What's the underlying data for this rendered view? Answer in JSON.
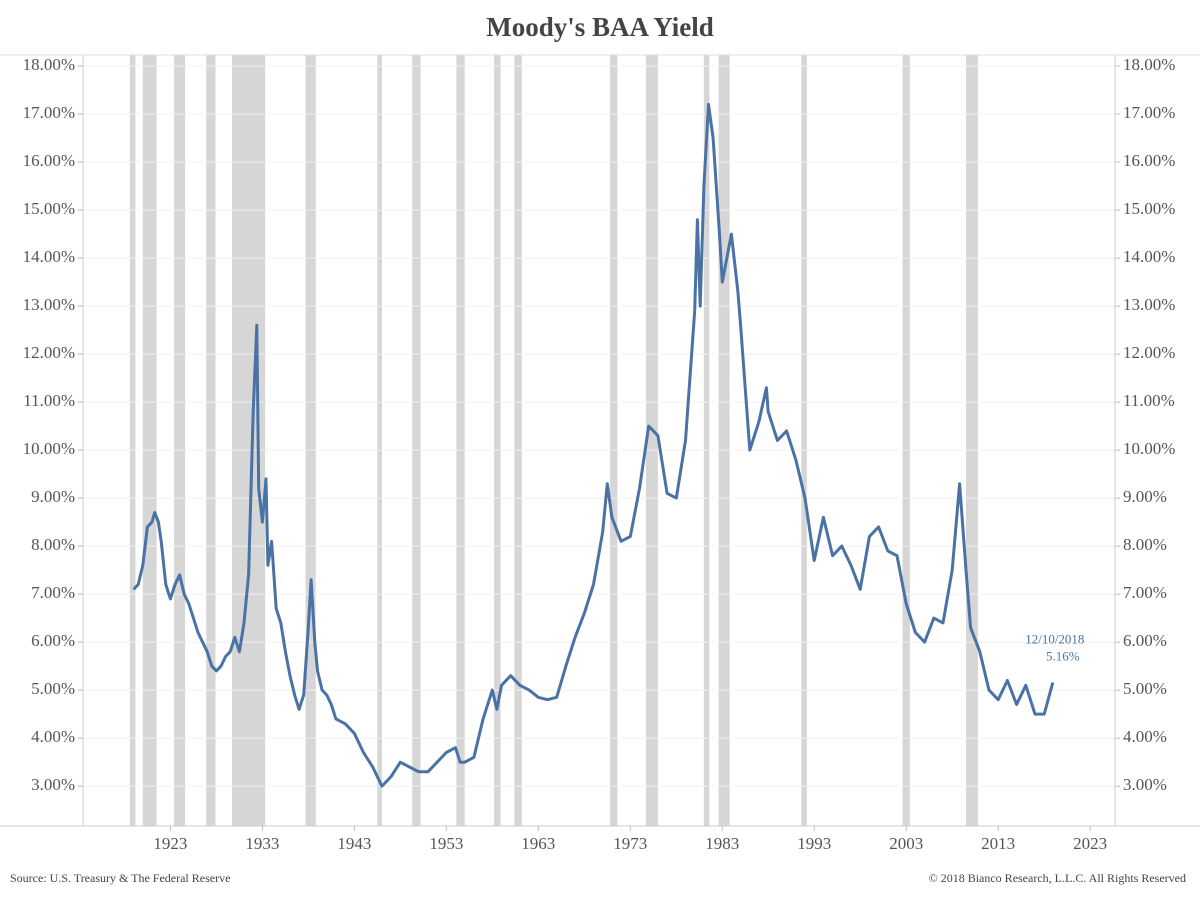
{
  "chart_data": {
    "type": "line",
    "title": "Moody's BAA Yield",
    "source": "Source: U.S. Treasury & The Federal Reserve",
    "copyright": "© 2018 Bianco Research, L.L.C. All Rights Reserved",
    "xlim": [
      1913.5,
      2025.7
    ],
    "xticks": [
      1923,
      1933,
      1943,
      1953,
      1963,
      1973,
      1983,
      1993,
      2003,
      2013,
      2023
    ],
    "ylim": [
      2.17,
      18.23
    ],
    "yticks": [
      {
        "value": 3,
        "label": "3.00%"
      },
      {
        "value": 4,
        "label": "4.00%"
      },
      {
        "value": 5,
        "label": "5.00%"
      },
      {
        "value": 6,
        "label": "6.00%"
      },
      {
        "value": 7,
        "label": "7.00%"
      },
      {
        "value": 8,
        "label": "8.00%"
      },
      {
        "value": 9,
        "label": "9.00%"
      },
      {
        "value": 10,
        "label": "10.00%"
      },
      {
        "value": 11,
        "label": "11.00%"
      },
      {
        "value": 12,
        "label": "12.00%"
      },
      {
        "value": 13,
        "label": "13.00%"
      },
      {
        "value": 14,
        "label": "14.00%"
      },
      {
        "value": 15,
        "label": "15.00%"
      },
      {
        "value": 16,
        "label": "16.00%"
      },
      {
        "value": 17,
        "label": "17.00%"
      },
      {
        "value": 18,
        "label": "18.00%"
      }
    ],
    "grid": true,
    "recession_color": "#d6d6d6",
    "recessions": [
      [
        1918.6,
        1919.2
      ],
      [
        1920.0,
        1921.5
      ],
      [
        1923.4,
        1924.6
      ],
      [
        1926.9,
        1927.9
      ],
      [
        1929.7,
        1933.3
      ],
      [
        1937.7,
        1938.8
      ],
      [
        1945.5,
        1946.0
      ],
      [
        1949.3,
        1950.2
      ],
      [
        1954.1,
        1955.0
      ],
      [
        1958.2,
        1958.9
      ],
      [
        1960.4,
        1961.2
      ],
      [
        1970.8,
        1971.6
      ],
      [
        1974.7,
        1976.0
      ],
      [
        1981.0,
        1981.6
      ],
      [
        1982.6,
        1983.8
      ],
      [
        1991.6,
        1992.2
      ],
      [
        2002.6,
        2003.4
      ],
      [
        2009.5,
        2010.8
      ]
    ],
    "x": [
      1919.0,
      1919.5,
      1920.0,
      1920.5,
      1921.0,
      1921.3,
      1921.7,
      1922.0,
      1922.5,
      1923.0,
      1923.5,
      1924.0,
      1924.5,
      1925.0,
      1925.5,
      1926.0,
      1926.5,
      1927.0,
      1927.5,
      1928.0,
      1928.5,
      1929.0,
      1929.5,
      1930.0,
      1930.5,
      1931.0,
      1931.5,
      1932.0,
      1932.4,
      1932.6,
      1933.0,
      1933.4,
      1933.6,
      1934.0,
      1934.5,
      1935.0,
      1935.5,
      1936.0,
      1936.5,
      1937.0,
      1937.5,
      1938.0,
      1938.3,
      1938.7,
      1939.0,
      1939.5,
      1940.0,
      1940.5,
      1941.0,
      1942.0,
      1943.0,
      1944.0,
      1945.0,
      1946.0,
      1947.0,
      1948.0,
      1949.0,
      1950.0,
      1951.0,
      1952.0,
      1953.0,
      1954.0,
      1954.5,
      1955.0,
      1956.0,
      1957.0,
      1958.0,
      1958.5,
      1959.0,
      1960.0,
      1961.0,
      1962.0,
      1963.0,
      1964.0,
      1965.0,
      1966.0,
      1967.0,
      1968.0,
      1969.0,
      1970.0,
      1970.5,
      1971.0,
      1972.0,
      1973.0,
      1974.0,
      1975.0,
      1976.0,
      1977.0,
      1978.0,
      1979.0,
      1980.0,
      1980.3,
      1980.6,
      1981.0,
      1981.5,
      1982.0,
      1982.7,
      1983.0,
      1984.0,
      1984.7,
      1985.0,
      1986.0,
      1987.0,
      1987.8,
      1988.0,
      1989.0,
      1990.0,
      1991.0,
      1992.0,
      1993.0,
      1994.0,
      1995.0,
      1996.0,
      1997.0,
      1998.0,
      1999.0,
      2000.0,
      2001.0,
      2002.0,
      2003.0,
      2004.0,
      2005.0,
      2006.0,
      2007.0,
      2008.0,
      2008.8,
      2009.5,
      2010.0,
      2011.0,
      2012.0,
      2013.0,
      2014.0,
      2015.0,
      2016.0,
      2017.0,
      2018.0,
      2018.94
    ],
    "series": [
      {
        "name": "Moody's BAA Yield",
        "color": "#4a72a4",
        "values": [
          7.1,
          7.2,
          7.6,
          8.4,
          8.5,
          8.7,
          8.5,
          8.1,
          7.2,
          6.9,
          7.2,
          7.4,
          7.0,
          6.8,
          6.5,
          6.2,
          6.0,
          5.8,
          5.5,
          5.4,
          5.5,
          5.7,
          5.8,
          6.1,
          5.8,
          6.4,
          7.4,
          10.8,
          12.6,
          9.2,
          8.5,
          9.4,
          7.6,
          8.1,
          6.7,
          6.4,
          5.8,
          5.3,
          4.9,
          4.6,
          4.9,
          6.3,
          7.3,
          6.0,
          5.4,
          5.0,
          4.9,
          4.7,
          4.4,
          4.3,
          4.1,
          3.7,
          3.4,
          3.0,
          3.2,
          3.5,
          3.4,
          3.3,
          3.3,
          3.5,
          3.7,
          3.8,
          3.5,
          3.5,
          3.6,
          4.4,
          5.0,
          4.6,
          5.1,
          5.3,
          5.1,
          5.0,
          4.85,
          4.8,
          4.85,
          5.5,
          6.1,
          6.6,
          7.2,
          8.3,
          9.3,
          8.6,
          8.1,
          8.2,
          9.2,
          10.5,
          10.3,
          9.1,
          9.0,
          10.2,
          12.9,
          14.8,
          13.0,
          15.5,
          17.2,
          16.5,
          14.5,
          13.5,
          14.5,
          13.3,
          12.6,
          10.0,
          10.6,
          11.3,
          10.8,
          10.2,
          10.4,
          9.8,
          9.0,
          7.7,
          8.6,
          7.8,
          8.0,
          7.6,
          7.1,
          8.2,
          8.4,
          7.9,
          7.8,
          6.8,
          6.2,
          6.0,
          6.5,
          6.4,
          7.5,
          9.3,
          7.5,
          6.3,
          5.8,
          5.0,
          4.8,
          5.2,
          4.7,
          5.1,
          4.5,
          4.5,
          5.16
        ]
      }
    ],
    "annotation": {
      "x": 2018.94,
      "y": 5.16,
      "date_label": "12/10/2018",
      "value_label": "5.16%"
    }
  }
}
